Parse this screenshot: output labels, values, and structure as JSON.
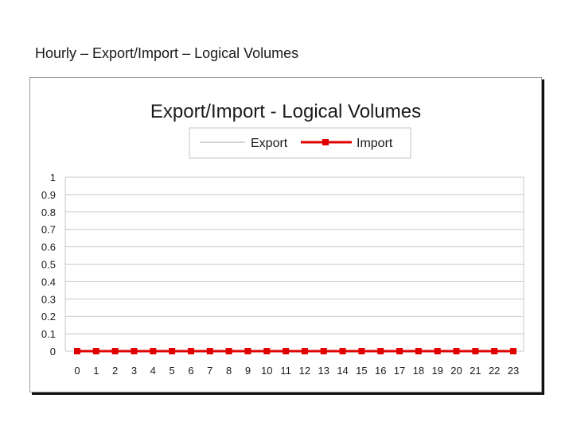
{
  "slide": {
    "title": "Hourly – Export/Import – Logical Volumes"
  },
  "chart_data": {
    "type": "line",
    "title": "Export/Import - Logical Volumes",
    "xlabel": "",
    "ylabel": "",
    "categories": [
      "0",
      "1",
      "2",
      "3",
      "4",
      "5",
      "6",
      "7",
      "8",
      "9",
      "10",
      "11",
      "12",
      "13",
      "14",
      "15",
      "16",
      "17",
      "18",
      "19",
      "20",
      "21",
      "22",
      "23"
    ],
    "ylim": [
      0,
      1
    ],
    "yticks": [
      "0",
      "0.1",
      "0.2",
      "0.3",
      "0.4",
      "0.5",
      "0.6",
      "0.7",
      "0.8",
      "0.9",
      "1"
    ],
    "grid": true,
    "legend_position": "top",
    "series": [
      {
        "name": "Export",
        "color": "#c8c8c8",
        "marker": "none",
        "values": [
          0,
          0,
          0,
          0,
          0,
          0,
          0,
          0,
          0,
          0,
          0,
          0,
          0,
          0,
          0,
          0,
          0,
          0,
          0,
          0,
          0,
          0,
          0,
          0
        ]
      },
      {
        "name": "Import",
        "color": "#e00000",
        "marker": "square",
        "values": [
          0,
          0,
          0,
          0,
          0,
          0,
          0,
          0,
          0,
          0,
          0,
          0,
          0,
          0,
          0,
          0,
          0,
          0,
          0,
          0,
          0,
          0,
          0,
          0
        ]
      }
    ]
  }
}
